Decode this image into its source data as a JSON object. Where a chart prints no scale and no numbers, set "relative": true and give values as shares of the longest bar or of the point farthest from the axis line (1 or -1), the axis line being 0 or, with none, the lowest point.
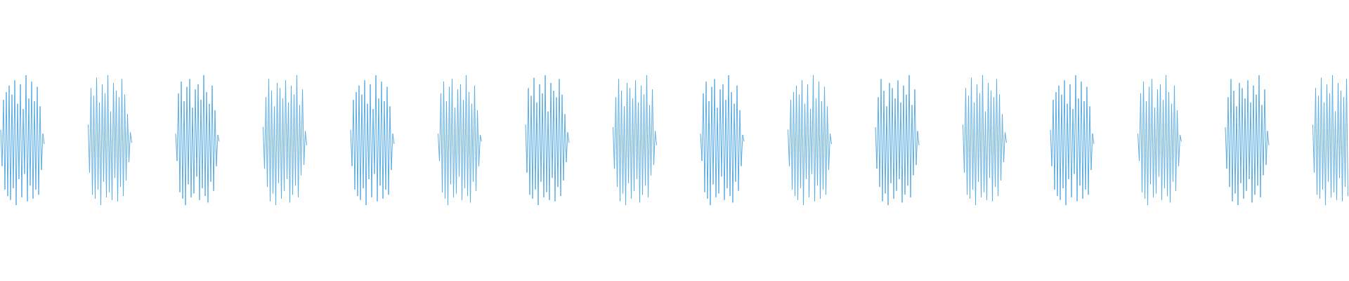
{
  "chart_data": [
    {
      "type": "line",
      "relative": true,
      "color": "#5dade2",
      "categories": [
        null,
        null,
        null,
        null,
        null,
        null,
        null,
        null,
        null,
        null,
        null,
        null,
        null,
        null,
        null,
        null,
        null,
        null,
        null,
        null,
        null,
        null,
        null,
        null,
        null,
        null,
        null,
        null,
        null,
        null,
        null,
        null
      ],
      "values": [
        0.58,
        0.3,
        0.81,
        0.12,
        0.87,
        0.07,
        0.92,
        0.04,
        0.85,
        0.13,
        0.96,
        0.0,
        0.78,
        0.2,
        0.93,
        0.06,
        0.74,
        0.24,
        1.0,
        0.03,
        0.82,
        0.15,
        0.95,
        0.05,
        0.8,
        0.12,
        0.91,
        0.08,
        0.76,
        0.27,
        0.55,
        0.47
      ]
    },
    {
      "type": "line",
      "relative": true,
      "color": "#5dade2",
      "categories": [
        null,
        null,
        null,
        null,
        null,
        null,
        null,
        null,
        null,
        null,
        null,
        null,
        null,
        null,
        null,
        null,
        null,
        null,
        null,
        null,
        null,
        null,
        null,
        null,
        null,
        null,
        null,
        null,
        null,
        null,
        null,
        null
      ],
      "values": [
        0.62,
        0.25,
        0.9,
        0.08,
        0.84,
        0.05,
        0.98,
        0.12,
        0.79,
        0.0,
        0.93,
        0.18,
        0.86,
        0.06,
        1.0,
        0.1,
        0.72,
        0.04,
        0.94,
        0.21,
        0.88,
        0.03,
        0.83,
        0.14,
        0.97,
        0.07,
        0.85,
        0.19,
        0.7,
        0.33,
        0.56,
        0.48
      ]
    },
    {
      "type": "line",
      "relative": true,
      "color": "#5dade2",
      "categories": [
        null,
        null,
        null,
        null,
        null,
        null,
        null,
        null,
        null,
        null,
        null,
        null,
        null,
        null,
        null,
        null,
        null,
        null,
        null,
        null,
        null,
        null,
        null,
        null,
        null,
        null,
        null,
        null,
        null,
        null,
        null,
        null
      ],
      "values": [
        0.55,
        0.34,
        0.86,
        0.1,
        0.95,
        0.05,
        0.8,
        0.0,
        0.91,
        0.16,
        0.97,
        0.06,
        0.75,
        0.09,
        0.89,
        0.22,
        0.93,
        0.04,
        0.81,
        0.13,
        1.0,
        0.07,
        0.87,
        0.02,
        0.78,
        0.18,
        0.92,
        0.11,
        0.73,
        0.3,
        0.54,
        0.49
      ]
    },
    {
      "type": "line",
      "relative": true,
      "color": "#5dade2",
      "categories": [
        null,
        null,
        null,
        null,
        null,
        null,
        null,
        null,
        null,
        null,
        null,
        null,
        null,
        null,
        null,
        null,
        null,
        null,
        null,
        null,
        null,
        null,
        null,
        null,
        null,
        null,
        null,
        null,
        null,
        null,
        null,
        null
      ],
      "values": [
        0.6,
        0.28,
        0.83,
        0.14,
        0.97,
        0.03,
        0.88,
        0.09,
        0.76,
        0.0,
        0.94,
        0.17,
        0.9,
        0.05,
        0.82,
        0.11,
        0.96,
        0.2,
        0.79,
        0.02,
        0.92,
        0.08,
        0.85,
        0.15,
        1.0,
        0.06,
        0.77,
        0.23,
        0.89,
        0.31,
        0.57,
        0.46
      ]
    },
    {
      "type": "line",
      "relative": true,
      "color": "#5dade2",
      "categories": [
        null,
        null,
        null,
        null,
        null,
        null,
        null,
        null,
        null,
        null,
        null,
        null,
        null,
        null,
        null,
        null,
        null,
        null,
        null,
        null,
        null,
        null,
        null,
        null,
        null,
        null,
        null,
        null,
        null,
        null,
        null,
        null
      ],
      "values": [
        0.58,
        0.3,
        0.81,
        0.12,
        0.87,
        0.07,
        0.92,
        0.04,
        0.85,
        0.13,
        0.96,
        0.0,
        0.78,
        0.2,
        0.93,
        0.06,
        0.74,
        0.24,
        1.0,
        0.03,
        0.82,
        0.15,
        0.95,
        0.05,
        0.8,
        0.12,
        0.91,
        0.08,
        0.76,
        0.27,
        0.55,
        0.47
      ]
    },
    {
      "type": "line",
      "relative": true,
      "color": "#5dade2",
      "categories": [
        null,
        null,
        null,
        null,
        null,
        null,
        null,
        null,
        null,
        null,
        null,
        null,
        null,
        null,
        null,
        null,
        null,
        null,
        null,
        null,
        null,
        null,
        null,
        null,
        null,
        null,
        null,
        null,
        null,
        null,
        null,
        null
      ],
      "values": [
        0.55,
        0.34,
        0.86,
        0.1,
        0.95,
        0.05,
        0.8,
        0.0,
        0.91,
        0.16,
        0.97,
        0.06,
        0.75,
        0.09,
        0.89,
        0.22,
        0.93,
        0.04,
        0.81,
        0.13,
        1.0,
        0.07,
        0.87,
        0.02,
        0.78,
        0.18,
        0.92,
        0.11,
        0.73,
        0.3,
        0.54,
        0.49
      ]
    },
    {
      "type": "line",
      "relative": true,
      "color": "#5dade2",
      "categories": [
        null,
        null,
        null,
        null,
        null,
        null,
        null,
        null,
        null,
        null,
        null,
        null,
        null,
        null,
        null,
        null,
        null,
        null,
        null,
        null,
        null,
        null,
        null,
        null,
        null,
        null,
        null,
        null,
        null,
        null,
        null,
        null
      ],
      "values": [
        0.62,
        0.25,
        0.9,
        0.08,
        0.84,
        0.05,
        0.98,
        0.12,
        0.79,
        0.0,
        0.93,
        0.18,
        0.86,
        0.06,
        1.0,
        0.1,
        0.72,
        0.04,
        0.94,
        0.21,
        0.88,
        0.03,
        0.83,
        0.14,
        0.97,
        0.07,
        0.85,
        0.19,
        0.7,
        0.33,
        0.56,
        0.48
      ]
    },
    {
      "type": "line",
      "relative": true,
      "color": "#5dade2",
      "categories": [
        null,
        null,
        null,
        null,
        null,
        null,
        null,
        null,
        null,
        null,
        null,
        null,
        null,
        null,
        null,
        null,
        null,
        null,
        null,
        null,
        null,
        null,
        null,
        null,
        null,
        null,
        null,
        null,
        null,
        null,
        null,
        null
      ],
      "values": [
        0.6,
        0.28,
        0.83,
        0.14,
        0.97,
        0.03,
        0.88,
        0.09,
        0.76,
        0.0,
        0.94,
        0.17,
        0.9,
        0.05,
        0.82,
        0.11,
        0.96,
        0.2,
        0.79,
        0.02,
        0.92,
        0.08,
        0.85,
        0.15,
        1.0,
        0.06,
        0.77,
        0.23,
        0.89,
        0.31,
        0.57,
        0.46
      ]
    },
    {
      "type": "line",
      "relative": true,
      "color": "#5dade2",
      "categories": [
        null,
        null,
        null,
        null,
        null,
        null,
        null,
        null,
        null,
        null,
        null,
        null,
        null,
        null,
        null,
        null,
        null,
        null,
        null,
        null,
        null,
        null,
        null,
        null,
        null,
        null,
        null,
        null,
        null,
        null,
        null,
        null
      ],
      "values": [
        0.55,
        0.34,
        0.86,
        0.1,
        0.95,
        0.05,
        0.8,
        0.0,
        0.91,
        0.16,
        0.97,
        0.06,
        0.75,
        0.09,
        0.89,
        0.22,
        0.93,
        0.04,
        0.81,
        0.13,
        1.0,
        0.07,
        0.87,
        0.02,
        0.78,
        0.18,
        0.92,
        0.11,
        0.73,
        0.3,
        0.54,
        0.49
      ]
    },
    {
      "type": "line",
      "relative": true,
      "color": "#5dade2",
      "categories": [
        null,
        null,
        null,
        null,
        null,
        null,
        null,
        null,
        null,
        null,
        null,
        null,
        null,
        null,
        null,
        null,
        null,
        null,
        null,
        null,
        null,
        null,
        null,
        null,
        null,
        null,
        null,
        null,
        null,
        null,
        null,
        null
      ],
      "values": [
        0.58,
        0.3,
        0.81,
        0.12,
        0.87,
        0.07,
        0.92,
        0.04,
        0.85,
        0.13,
        0.96,
        0.0,
        0.78,
        0.2,
        0.93,
        0.06,
        0.74,
        0.24,
        1.0,
        0.03,
        0.82,
        0.15,
        0.95,
        0.05,
        0.8,
        0.12,
        0.91,
        0.08,
        0.76,
        0.27,
        0.55,
        0.47
      ]
    },
    {
      "type": "line",
      "relative": true,
      "color": "#5dade2",
      "categories": [
        null,
        null,
        null,
        null,
        null,
        null,
        null,
        null,
        null,
        null,
        null,
        null,
        null,
        null,
        null,
        null,
        null,
        null,
        null,
        null,
        null,
        null,
        null,
        null,
        null,
        null,
        null,
        null,
        null,
        null,
        null,
        null
      ],
      "values": [
        0.6,
        0.28,
        0.83,
        0.14,
        0.97,
        0.03,
        0.88,
        0.09,
        0.76,
        0.0,
        0.94,
        0.17,
        0.9,
        0.05,
        0.82,
        0.11,
        0.96,
        0.2,
        0.79,
        0.02,
        0.92,
        0.08,
        0.85,
        0.15,
        1.0,
        0.06,
        0.77,
        0.23,
        0.89,
        0.31,
        0.57,
        0.46
      ]
    },
    {
      "type": "line",
      "relative": true,
      "color": "#5dade2",
      "categories": [
        null,
        null,
        null,
        null,
        null,
        null,
        null,
        null,
        null,
        null,
        null,
        null,
        null,
        null,
        null,
        null,
        null,
        null,
        null,
        null,
        null,
        null,
        null,
        null,
        null,
        null,
        null,
        null,
        null,
        null,
        null,
        null
      ],
      "values": [
        0.62,
        0.25,
        0.9,
        0.08,
        0.84,
        0.05,
        0.98,
        0.12,
        0.79,
        0.0,
        0.93,
        0.18,
        0.86,
        0.06,
        1.0,
        0.1,
        0.72,
        0.04,
        0.94,
        0.21,
        0.88,
        0.03,
        0.83,
        0.14,
        0.97,
        0.07,
        0.85,
        0.19,
        0.7,
        0.33,
        0.56,
        0.48
      ]
    },
    {
      "type": "line",
      "relative": true,
      "color": "#5dade2",
      "categories": [
        null,
        null,
        null,
        null,
        null,
        null,
        null,
        null,
        null,
        null,
        null,
        null,
        null,
        null,
        null,
        null,
        null,
        null,
        null,
        null,
        null,
        null,
        null,
        null,
        null,
        null,
        null,
        null,
        null,
        null,
        null,
        null
      ],
      "values": [
        0.58,
        0.3,
        0.81,
        0.12,
        0.87,
        0.07,
        0.92,
        0.04,
        0.85,
        0.13,
        0.96,
        0.0,
        0.78,
        0.2,
        0.93,
        0.06,
        0.74,
        0.24,
        1.0,
        0.03,
        0.82,
        0.15,
        0.95,
        0.05,
        0.8,
        0.12,
        0.91,
        0.08,
        0.76,
        0.27,
        0.55,
        0.47
      ]
    },
    {
      "type": "line",
      "relative": true,
      "color": "#5dade2",
      "categories": [
        null,
        null,
        null,
        null,
        null,
        null,
        null,
        null,
        null,
        null,
        null,
        null,
        null,
        null,
        null,
        null,
        null,
        null,
        null,
        null,
        null,
        null,
        null,
        null,
        null,
        null,
        null,
        null,
        null,
        null,
        null,
        null
      ],
      "values": [
        0.55,
        0.34,
        0.86,
        0.1,
        0.95,
        0.05,
        0.8,
        0.0,
        0.91,
        0.16,
        0.97,
        0.06,
        0.75,
        0.09,
        0.89,
        0.22,
        0.93,
        0.04,
        0.81,
        0.13,
        1.0,
        0.07,
        0.87,
        0.02,
        0.78,
        0.18,
        0.92,
        0.11,
        0.73,
        0.3,
        0.54,
        0.49
      ]
    },
    {
      "type": "line",
      "relative": true,
      "color": "#5dade2",
      "categories": [
        null,
        null,
        null,
        null,
        null,
        null,
        null,
        null,
        null,
        null,
        null,
        null,
        null,
        null,
        null,
        null,
        null,
        null,
        null,
        null,
        null,
        null,
        null,
        null,
        null,
        null,
        null,
        null,
        null,
        null,
        null,
        null
      ],
      "values": [
        0.6,
        0.28,
        0.83,
        0.14,
        0.97,
        0.03,
        0.88,
        0.09,
        0.76,
        0.0,
        0.94,
        0.17,
        0.9,
        0.05,
        0.82,
        0.11,
        0.96,
        0.2,
        0.79,
        0.02,
        0.92,
        0.08,
        0.85,
        0.15,
        1.0,
        0.06,
        0.77,
        0.23,
        0.89,
        0.31,
        0.57,
        0.46
      ]
    },
    {
      "type": "line",
      "relative": true,
      "color": "#5dade2",
      "categories": [
        null,
        null,
        null,
        null,
        null,
        null,
        null,
        null,
        null,
        null,
        null,
        null,
        null,
        null,
        null,
        null,
        null,
        null,
        null,
        null,
        null,
        null,
        null,
        null,
        null,
        null
      ],
      "values": [
        0.62,
        0.25,
        0.9,
        0.08,
        0.84,
        0.05,
        0.98,
        0.12,
        0.79,
        0.0,
        0.93,
        0.18,
        0.86,
        0.06,
        1.0,
        0.1,
        0.72,
        0.04,
        0.94,
        0.21,
        0.88,
        0.03,
        0.83,
        0.14,
        0.97,
        0.07
      ]
    }
  ]
}
